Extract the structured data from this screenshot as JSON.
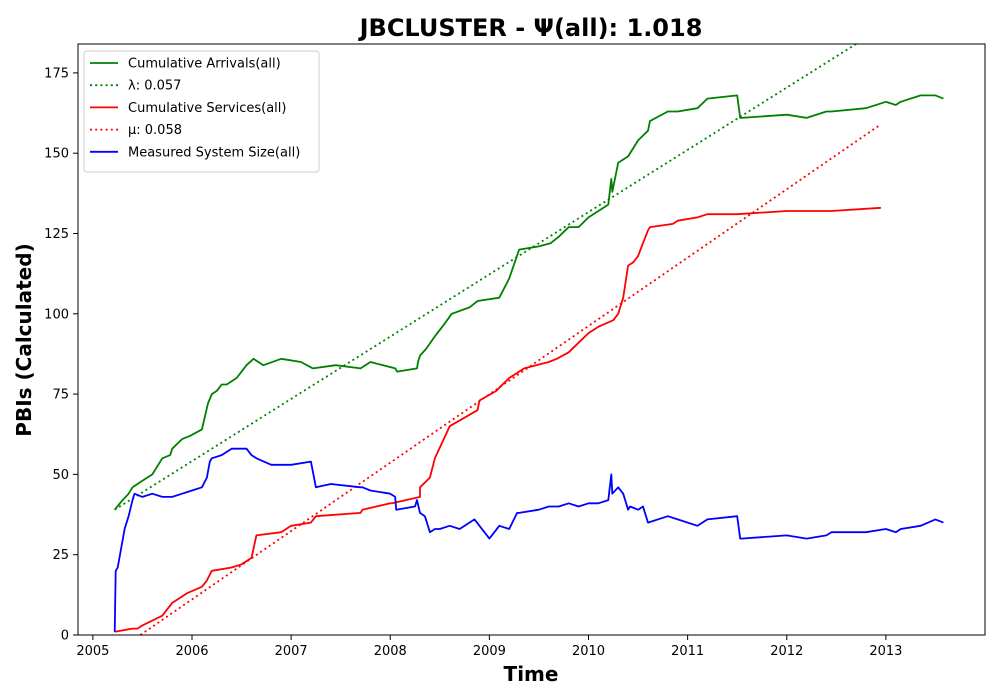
{
  "chart_data": {
    "type": "line",
    "title": "JBCLUSTER -  Ψ(all): 1.018",
    "xlabel": "Time",
    "ylabel": "PBIs (Calculated)",
    "xlim": [
      2004.85,
      2014.0
    ],
    "ylim": [
      0,
      184
    ],
    "x_ticks": [
      2005,
      2006,
      2007,
      2008,
      2009,
      2010,
      2011,
      2012,
      2013
    ],
    "x_tick_labels": [
      "2005",
      "2006",
      "2007",
      "2008",
      "2009",
      "2010",
      "2011",
      "2012",
      "2013"
    ],
    "y_ticks": [
      0,
      25,
      50,
      75,
      100,
      125,
      150,
      175
    ],
    "y_tick_labels": [
      "0",
      "25",
      "50",
      "75",
      "100",
      "125",
      "150",
      "175"
    ],
    "grid": false,
    "legend_position": "top-left",
    "series": [
      {
        "name": "Cumulative Arrivals(all)",
        "legend": "Cumulative Arrivals(all)",
        "color": "#008000",
        "style": "solid",
        "x": [
          2005.22,
          2005.3,
          2005.36,
          2005.4,
          2005.45,
          2005.5,
          2005.6,
          2005.7,
          2005.78,
          2005.8,
          2005.9,
          2005.98,
          2006.1,
          2006.16,
          2006.2,
          2006.25,
          2006.3,
          2006.35,
          2006.4,
          2006.45,
          2006.5,
          2006.55,
          2006.62,
          2006.72,
          2006.9,
          2007.1,
          2007.22,
          2007.45,
          2007.7,
          2007.8,
          2008.05,
          2008.07,
          2008.27,
          2008.28,
          2008.3,
          2008.36,
          2008.45,
          2008.55,
          2008.62,
          2008.8,
          2008.88,
          2009.1,
          2009.2,
          2009.3,
          2009.5,
          2009.62,
          2009.7,
          2009.8,
          2009.9,
          2010.0,
          2010.1,
          2010.2,
          2010.23,
          2010.24,
          2010.3,
          2010.4,
          2010.5,
          2010.6,
          2010.62,
          2010.8,
          2010.9,
          2011.1,
          2011.2,
          2011.5,
          2011.53,
          2011.54,
          2012.0,
          2012.2,
          2012.4,
          2012.45,
          2012.8,
          2013.0,
          2013.1,
          2013.15,
          2013.35,
          2013.5,
          2013.58
        ],
        "y": [
          39,
          42,
          44,
          46,
          47,
          48,
          50,
          55,
          56,
          58,
          61,
          62,
          64,
          72,
          75,
          76,
          78,
          78,
          79,
          80,
          82,
          84,
          86,
          84,
          86,
          85,
          83,
          84,
          83,
          85,
          83,
          82,
          83,
          85,
          87,
          89,
          93,
          97,
          100,
          102,
          104,
          105,
          111,
          120,
          121,
          122,
          124,
          127,
          127,
          130,
          132,
          134,
          142,
          138,
          147,
          149,
          154,
          157,
          160,
          163,
          163,
          164,
          167,
          168,
          161,
          161,
          162,
          161,
          163,
          163,
          164,
          166,
          165,
          166,
          168,
          168,
          167
        ]
      },
      {
        "name": "λ: 0.057",
        "legend": "λ: 0.057",
        "color": "#008000",
        "style": "dotted",
        "x": [
          2005.22,
          2012.7
        ],
        "y": [
          39,
          184
        ]
      },
      {
        "name": "Cumulative Services(all)",
        "legend": "Cumulative Services(all)",
        "color": "#ff0000",
        "style": "solid",
        "x": [
          2005.22,
          2005.4,
          2005.45,
          2005.5,
          2005.7,
          2005.75,
          2005.8,
          2005.9,
          2005.95,
          2006.1,
          2006.15,
          2006.2,
          2006.4,
          2006.5,
          2006.6,
          2006.65,
          2006.9,
          2007.0,
          2007.2,
          2007.25,
          2007.7,
          2007.72,
          2008.0,
          2008.02,
          2008.3,
          2008.3,
          2008.4,
          2008.45,
          2008.6,
          2008.88,
          2008.9,
          2009.07,
          2009.1,
          2009.2,
          2009.3,
          2009.35,
          2009.6,
          2009.68,
          2009.8,
          2009.9,
          2010.0,
          2010.1,
          2010.25,
          2010.3,
          2010.35,
          2010.4,
          2010.45,
          2010.5,
          2010.55,
          2010.6,
          2010.62,
          2010.85,
          2010.9,
          2011.1,
          2011.2,
          2011.5,
          2012.0,
          2012.45,
          2012.95
        ],
        "y": [
          1,
          2,
          2,
          3,
          6,
          8,
          10,
          12,
          13,
          15,
          17,
          20,
          21,
          22,
          24,
          31,
          32,
          34,
          35,
          37,
          38,
          39,
          41,
          41,
          43,
          46,
          49,
          55,
          65,
          70,
          73,
          76,
          77,
          80,
          82,
          83,
          85,
          86,
          88,
          91,
          94,
          96,
          98,
          100,
          105,
          115,
          116,
          118,
          122,
          126,
          127,
          128,
          129,
          130,
          131,
          131,
          132,
          132,
          133
        ]
      },
      {
        "name": "μ: 0.058",
        "legend": "μ: 0.058",
        "color": "#ff0000",
        "style": "dotted",
        "x": [
          2005.48,
          2012.95
        ],
        "y": [
          0,
          159
        ]
      },
      {
        "name": "Measured System Size(all)",
        "legend": "Measured System Size(all)",
        "color": "#0000ff",
        "style": "solid",
        "x": [
          2005.22,
          2005.23,
          2005.25,
          2005.28,
          2005.32,
          2005.36,
          2005.4,
          2005.42,
          2005.5,
          2005.6,
          2005.7,
          2005.8,
          2005.9,
          2006.0,
          2006.1,
          2006.15,
          2006.18,
          2006.2,
          2006.3,
          2006.4,
          2006.5,
          2006.55,
          2006.6,
          2006.65,
          2006.8,
          2006.9,
          2007.0,
          2007.2,
          2007.25,
          2007.4,
          2007.7,
          2007.72,
          2007.8,
          2008.0,
          2008.05,
          2008.06,
          2008.25,
          2008.27,
          2008.3,
          2008.35,
          2008.4,
          2008.45,
          2008.5,
          2008.6,
          2008.7,
          2008.8,
          2008.85,
          2009.0,
          2009.1,
          2009.2,
          2009.28,
          2009.3,
          2009.5,
          2009.6,
          2009.7,
          2009.8,
          2009.9,
          2010.0,
          2010.1,
          2010.2,
          2010.23,
          2010.24,
          2010.3,
          2010.35,
          2010.4,
          2010.42,
          2010.5,
          2010.55,
          2010.6,
          2010.8,
          2010.9,
          2011.1,
          2011.2,
          2011.5,
          2011.53,
          2011.54,
          2012.0,
          2012.2,
          2012.4,
          2012.45,
          2012.8,
          2013.0,
          2013.1,
          2013.15,
          2013.35,
          2013.5,
          2013.58
        ],
        "y": [
          1,
          20,
          21,
          26,
          33,
          37,
          42,
          44,
          43,
          44,
          43,
          43,
          44,
          45,
          46,
          49,
          54,
          55,
          56,
          58,
          58,
          58,
          56,
          55,
          53,
          53,
          53,
          54,
          46,
          47,
          46,
          46,
          45,
          44,
          43,
          39,
          40,
          42,
          38,
          37,
          32,
          33,
          33,
          34,
          33,
          35,
          36,
          30,
          34,
          33,
          38,
          38,
          39,
          40,
          40,
          41,
          40,
          41,
          41,
          42,
          50,
          44,
          46,
          44,
          39,
          40,
          39,
          40,
          35,
          37,
          36,
          34,
          36,
          37,
          30,
          30,
          31,
          30,
          31,
          32,
          32,
          33,
          32,
          33,
          34,
          36,
          35
        ]
      }
    ]
  }
}
